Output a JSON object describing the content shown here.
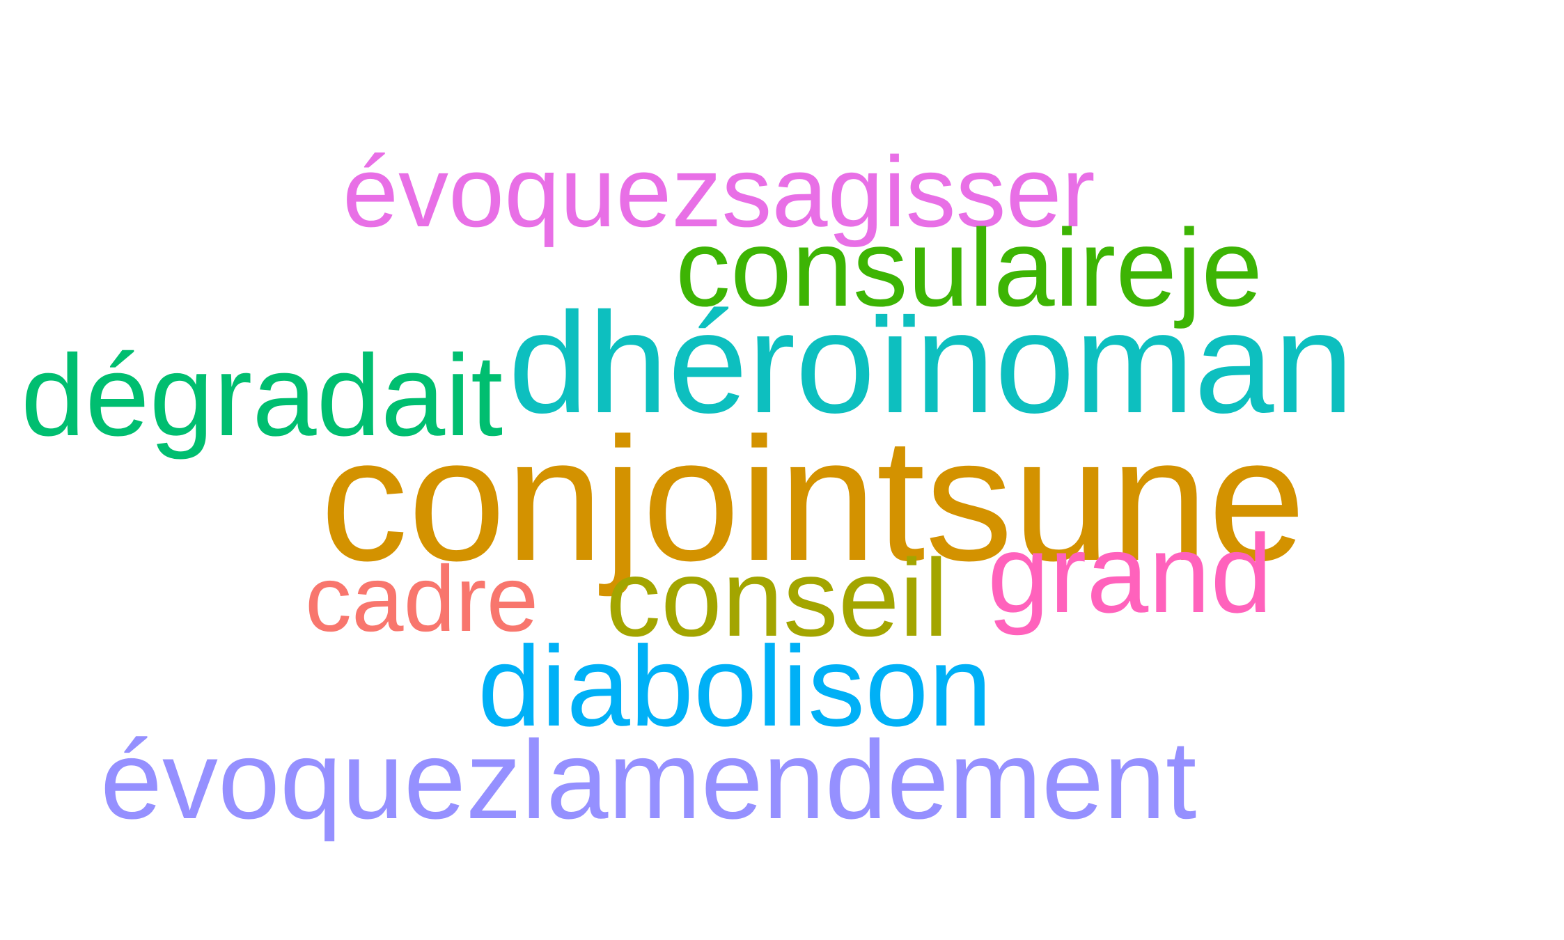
{
  "words": [
    {
      "text": "évoquezsagisser",
      "color": "#E86FE6"
    },
    {
      "text": "consulaireje",
      "color": "#3DB404"
    },
    {
      "text": "dhéroïnoman",
      "color": "#0DBFBF"
    },
    {
      "text": "dégradait",
      "color": "#00BE70"
    },
    {
      "text": "conjointsune",
      "color": "#D39200"
    },
    {
      "text": "cadre",
      "color": "#F8766D"
    },
    {
      "text": "conseil",
      "color": "#A3A500"
    },
    {
      "text": "grand",
      "color": "#FF62BC"
    },
    {
      "text": "diabolison",
      "color": "#00B0F6"
    },
    {
      "text": "évoquezlamendement",
      "color": "#9590FF"
    }
  ]
}
